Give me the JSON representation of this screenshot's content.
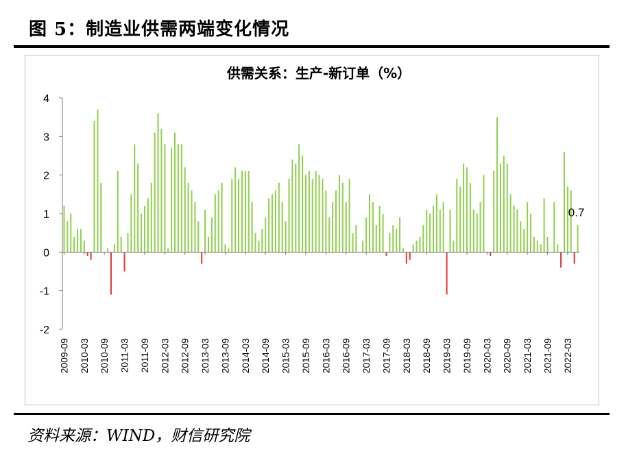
{
  "figure": {
    "title": "图 5：制造业供需两端变化情况",
    "source": "资料来源：WIND，财信研究院"
  },
  "chart_data": {
    "type": "bar",
    "title": "供需关系：生产-新订单（%）",
    "ylim": [
      -2,
      4
    ],
    "yticks": [
      "4",
      "3",
      "2",
      "1",
      "0",
      "-1",
      "-2"
    ],
    "xtick_labels": [
      "2009-09",
      "2010-03",
      "2010-09",
      "2011-03",
      "2011-09",
      "2012-03",
      "2012-09",
      "2013-03",
      "2013-09",
      "2014-03",
      "2014-09",
      "2015-03",
      "2015-09",
      "2016-03",
      "2016-09",
      "2017-03",
      "2017-09",
      "2018-03",
      "2018-09",
      "2019-03",
      "2019-09",
      "2020-03",
      "2020-09",
      "2021-03",
      "2021-09",
      "2022-03"
    ],
    "x_start": "2009-09",
    "x_end": "2022-03",
    "values": [
      1.2,
      0.8,
      1.0,
      0.4,
      0.6,
      0.6,
      0.3,
      -0.1,
      -0.2,
      3.4,
      3.7,
      1.8,
      0.0,
      0.1,
      -1.1,
      0.2,
      2.1,
      0.4,
      -0.5,
      0.5,
      1.5,
      2.8,
      2.3,
      1.0,
      1.2,
      1.4,
      1.8,
      3.1,
      3.6,
      3.2,
      2.8,
      0.1,
      2.7,
      3.1,
      2.8,
      2.8,
      2.2,
      1.8,
      1.6,
      1.3,
      0.8,
      -0.3,
      1.1,
      0.4,
      0.9,
      1.5,
      1.6,
      1.8,
      0.2,
      0.1,
      1.9,
      2.2,
      1.9,
      2.1,
      2.1,
      2.1,
      1.3,
      0.5,
      0.3,
      0.6,
      0.9,
      1.4,
      1.5,
      1.6,
      1.8,
      1.3,
      0.8,
      1.9,
      2.4,
      2.3,
      2.8,
      2.5,
      2.0,
      2.1,
      1.9,
      2.1,
      2.0,
      1.9,
      1.6,
      0.9,
      1.3,
      1.6,
      2.0,
      1.8,
      1.3,
      1.9,
      0.5,
      0.7,
      0.0,
      0.3,
      0.9,
      1.5,
      1.3,
      0.7,
      1.2,
      1.0,
      -0.1,
      0.5,
      0.7,
      0.6,
      0.9,
      0.1,
      -0.3,
      -0.2,
      0.2,
      0.3,
      0.4,
      0.7,
      1.1,
      1.0,
      1.2,
      1.5,
      1.1,
      1.3,
      -1.1,
      1.1,
      0.3,
      1.9,
      1.7,
      2.3,
      2.2,
      1.8,
      1.1,
      1.0,
      1.3,
      2.0,
      0.0,
      -0.1,
      2.1,
      3.5,
      2.3,
      2.5,
      2.3,
      1.5,
      1.2,
      1.1,
      0.8,
      0.6,
      1.3,
      1.0,
      0.4,
      0.3,
      0.2,
      1.4,
      0.4,
      0.0,
      1.3,
      0.2,
      -0.4,
      2.6,
      1.7,
      1.6,
      -0.3,
      0.7
    ],
    "positive_color": "#92d050",
    "negative_color": "#e03c31",
    "annotation": "0.7"
  }
}
